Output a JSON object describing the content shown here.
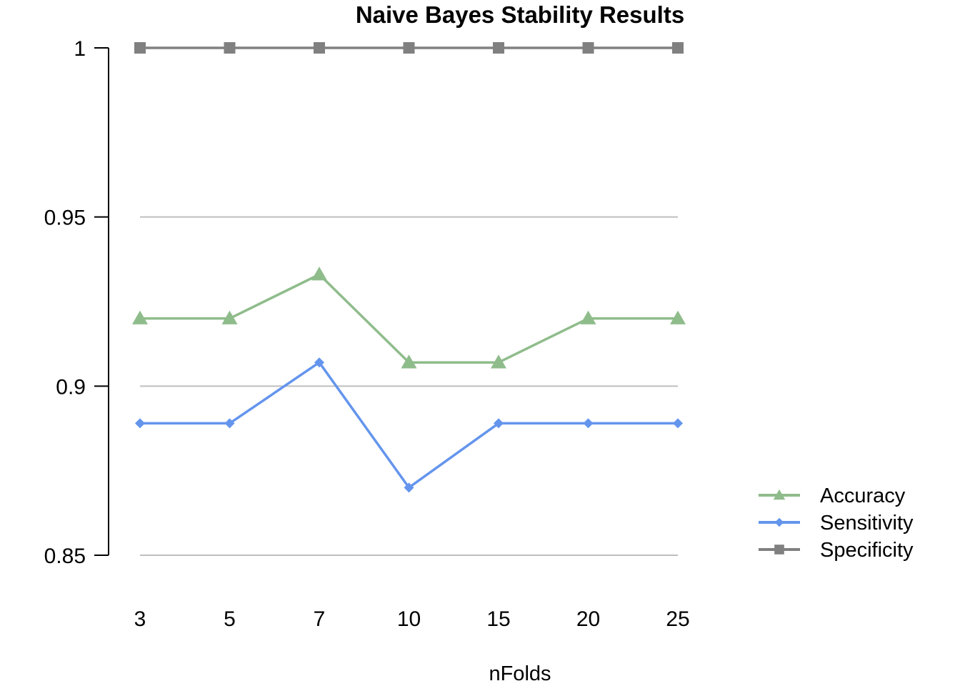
{
  "chart_data": {
    "type": "line",
    "title": "Naive Bayes Stability Results",
    "xlabel": "nFolds",
    "ylabel": "",
    "categories": [
      "3",
      "5",
      "7",
      "10",
      "15",
      "20",
      "25"
    ],
    "ylim": [
      0.85,
      1
    ],
    "yticks": [
      {
        "value": 0.85,
        "label": "0.85"
      },
      {
        "value": 0.9,
        "label": "0.9"
      },
      {
        "value": 0.95,
        "label": "0.95"
      },
      {
        "value": 1,
        "label": "1"
      }
    ],
    "grid": true,
    "legend_position": "right",
    "series": [
      {
        "name": "Accuracy",
        "color": "#8fbc8b",
        "marker": "triangle",
        "values": [
          0.92,
          0.92,
          0.933,
          0.907,
          0.907,
          0.92,
          0.92
        ]
      },
      {
        "name": "Sensitivity",
        "color": "#6495ed",
        "marker": "diamond",
        "values": [
          0.889,
          0.889,
          0.907,
          0.87,
          0.889,
          0.889,
          0.889
        ]
      },
      {
        "name": "Specificity",
        "color": "#808080",
        "marker": "square",
        "values": [
          1,
          1,
          1,
          1,
          1,
          1,
          1
        ]
      }
    ]
  }
}
